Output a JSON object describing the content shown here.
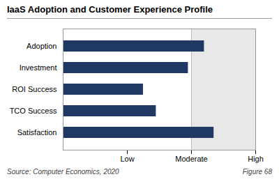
{
  "chart_data": {
    "type": "bar",
    "orientation": "horizontal",
    "title": "IaaS Adoption and Customer Experience Profile",
    "categories": [
      "Adoption",
      "Investment",
      "ROI Success",
      "TCO Success",
      "Satisfaction"
    ],
    "values": [
      2.2,
      1.95,
      1.25,
      1.45,
      2.35
    ],
    "color": "#1F3864",
    "xlim": [
      0,
      3
    ],
    "xticks": [
      {
        "value": 1,
        "label": "Low"
      },
      {
        "value": 2,
        "label": "Moderate"
      },
      {
        "value": 3,
        "label": "High"
      }
    ],
    "spans": [
      {
        "from": 2.0,
        "to": 3
      }
    ],
    "grid": false,
    "annotations": [
      "Source: Computer Economics, 2020",
      "Figure 68"
    ]
  }
}
